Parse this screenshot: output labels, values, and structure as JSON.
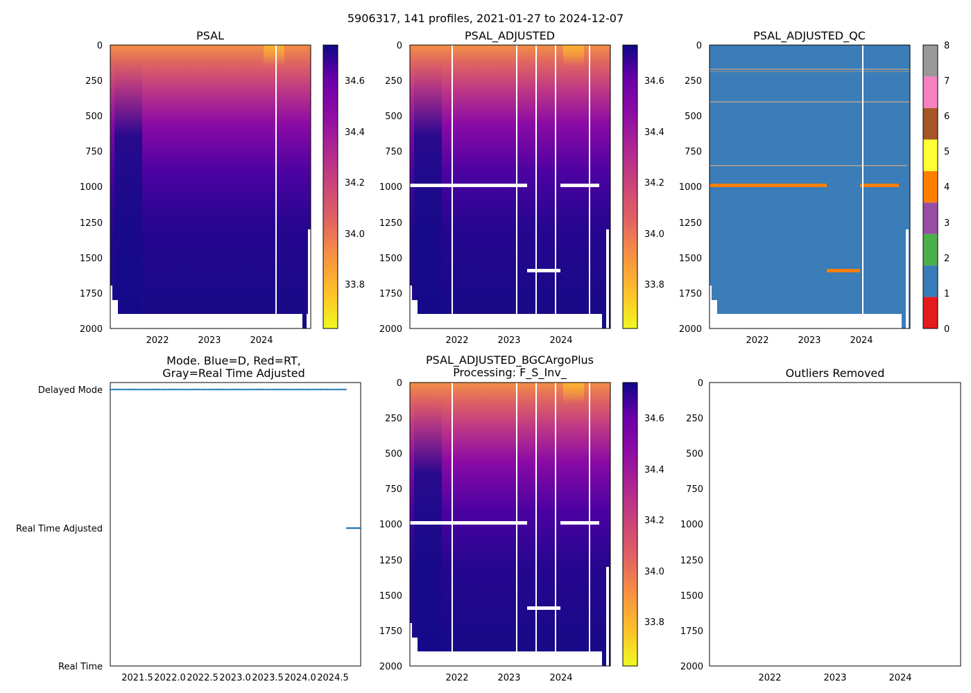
{
  "figure": {
    "suptitle": "5906317, 141 profiles, 2021-01-27 to 2024-12-07"
  },
  "colors": {
    "qc_palette": [
      "#e41a1c",
      "#377eb8",
      "#4daf4a",
      "#984ea3",
      "#ff7f00",
      "#ffff33",
      "#a65628",
      "#f781bf",
      "#999999"
    ],
    "mode_marker": "#1f77b4",
    "qc_good": "#3a7db8",
    "qc_bad": "#ff7f00",
    "qc_flag8": "#999999"
  },
  "chart_data": [
    {
      "id": "psal",
      "type": "heatmap",
      "title": "PSAL",
      "x_range": [
        2021.07,
        2024.93
      ],
      "y_range": [
        0,
        2000
      ],
      "y_inverted": true,
      "xticks": [
        "2022",
        "2023",
        "2024"
      ],
      "xtick_values": [
        2022,
        2023,
        2024
      ],
      "yticks": [
        "0",
        "250",
        "500",
        "750",
        "1000",
        "1250",
        "1500",
        "1750",
        "2000"
      ],
      "ytick_values": [
        0,
        250,
        500,
        750,
        1000,
        1250,
        1500,
        1750,
        2000
      ],
      "colormap": "plasma_r",
      "clim": [
        33.65,
        34.75
      ],
      "colorbar_ticks": [
        "33.8",
        "34.0",
        "34.2",
        "34.4",
        "34.6"
      ],
      "colorbar_tick_values": [
        33.8,
        34.0,
        34.2,
        34.4,
        34.6
      ],
      "gaps_x": [
        2024.27
      ],
      "has_adjusted_gaps": false
    },
    {
      "id": "psal_adj",
      "type": "heatmap",
      "title": "PSAL_ADJUSTED",
      "x_range": [
        2021.07,
        2024.93
      ],
      "y_range": [
        0,
        2000
      ],
      "y_inverted": true,
      "xticks": [
        "2022",
        "2023",
        "2024"
      ],
      "xtick_values": [
        2022,
        2023,
        2024
      ],
      "yticks": [
        "0",
        "250",
        "500",
        "750",
        "1000",
        "1250",
        "1500",
        "1750",
        "2000"
      ],
      "ytick_values": [
        0,
        250,
        500,
        750,
        1000,
        1250,
        1500,
        1750,
        2000
      ],
      "colormap": "plasma_r",
      "clim": [
        33.65,
        34.75
      ],
      "colorbar_ticks": [
        "33.8",
        "34.0",
        "34.2",
        "34.4",
        "34.6"
      ],
      "colorbar_tick_values": [
        33.8,
        34.0,
        34.2,
        34.4,
        34.6
      ],
      "gaps_x": [
        2021.88,
        2023.12,
        2023.5,
        2023.88,
        2024.52
      ],
      "missing_bands": [
        {
          "x0": 2021.07,
          "x1": 2023.32,
          "depth": 985
        },
        {
          "x0": 2023.97,
          "x1": 2024.7,
          "depth": 985
        },
        {
          "x0": 2023.33,
          "x1": 2023.97,
          "depth": 1585
        }
      ]
    },
    {
      "id": "psal_adj_qc",
      "type": "heatmap",
      "title": "PSAL_ADJUSTED_QC",
      "x_range": [
        2021.07,
        2024.93
      ],
      "y_range": [
        0,
        2000
      ],
      "y_inverted": true,
      "xticks": [
        "2022",
        "2023",
        "2024"
      ],
      "xtick_values": [
        2022,
        2023,
        2024
      ],
      "yticks": [
        "0",
        "250",
        "500",
        "750",
        "1000",
        "1250",
        "1500",
        "1750",
        "2000"
      ],
      "ytick_values": [
        0,
        250,
        500,
        750,
        1000,
        1250,
        1500,
        1750,
        2000
      ],
      "qc_levels": [
        0,
        1,
        2,
        3,
        4,
        5,
        6,
        7,
        8
      ],
      "colorbar_ticks": [
        "0",
        "1",
        "2",
        "3",
        "4",
        "5",
        "6",
        "7",
        "8"
      ],
      "dominant_flag": 1,
      "flag4_segments": [
        {
          "x0": 2021.07,
          "x1": 2023.32,
          "depth": 985
        },
        {
          "x0": 2023.97,
          "x1": 2024.7,
          "depth": 985
        },
        {
          "x0": 2023.33,
          "x1": 2023.97,
          "depth": 1585
        }
      ],
      "flag8_depths": [
        170,
        185,
        200,
        400,
        850
      ],
      "gaps_x": [
        2024.0
      ]
    },
    {
      "id": "mode",
      "type": "scatter",
      "title_lines": [
        "Mode. Blue=D, Red=RT,",
        "Gray=Real Time Adjusted"
      ],
      "x_range": [
        2021.07,
        2024.93
      ],
      "xticks": [
        "2021.5",
        "2022.0",
        "2022.5",
        "2023.0",
        "2023.5",
        "2024.0",
        "2024.5"
      ],
      "xtick_values": [
        2021.5,
        2022.0,
        2022.5,
        2023.0,
        2023.5,
        2024.0,
        2024.5
      ],
      "ycategories": [
        "Delayed Mode",
        "Real Time Adjusted",
        "Real Time"
      ],
      "series": [
        {
          "name": "Delayed Mode",
          "x_start": 2021.07,
          "x_end": 2024.7,
          "count": 130,
          "level": 0
        },
        {
          "name": "Real Time Adjusted",
          "x_start": 2024.72,
          "x_end": 2024.93,
          "count": 11,
          "level": 1
        }
      ]
    },
    {
      "id": "psal_bgc",
      "type": "heatmap",
      "title_lines": [
        "PSAL_ADJUSTED_BGCArgoPlus",
        "Processing: F_S_Inv_"
      ],
      "x_range": [
        2021.07,
        2024.93
      ],
      "y_range": [
        0,
        2000
      ],
      "y_inverted": true,
      "xticks": [
        "2022",
        "2023",
        "2024"
      ],
      "xtick_values": [
        2022,
        2023,
        2024
      ],
      "yticks": [
        "0",
        "250",
        "500",
        "750",
        "1000",
        "1250",
        "1500",
        "1750",
        "2000"
      ],
      "ytick_values": [
        0,
        250,
        500,
        750,
        1000,
        1250,
        1500,
        1750,
        2000
      ],
      "colormap": "plasma_r",
      "clim": [
        33.65,
        34.75
      ],
      "colorbar_ticks": [
        "33.8",
        "34.0",
        "34.2",
        "34.4",
        "34.6"
      ],
      "colorbar_tick_values": [
        33.8,
        34.0,
        34.2,
        34.4,
        34.6
      ],
      "gaps_x": [
        2021.88,
        2023.12,
        2023.5,
        2023.88,
        2024.52
      ],
      "missing_bands": [
        {
          "x0": 2021.07,
          "x1": 2023.32,
          "depth": 985
        },
        {
          "x0": 2023.97,
          "x1": 2024.7,
          "depth": 985
        },
        {
          "x0": 2023.33,
          "x1": 2023.97,
          "depth": 1585
        }
      ]
    },
    {
      "id": "outliers",
      "type": "scatter",
      "title": "Outliers Removed",
      "x_range": [
        2021.07,
        2024.93
      ],
      "y_range": [
        0,
        2000
      ],
      "y_inverted": true,
      "xticks": [
        "2022",
        "2023",
        "2024"
      ],
      "xtick_values": [
        2022,
        2023,
        2024
      ],
      "yticks": [
        "0",
        "250",
        "500",
        "750",
        "1000",
        "1250",
        "1500",
        "1750",
        "2000"
      ],
      "ytick_values": [
        0,
        250,
        500,
        750,
        1000,
        1250,
        1500,
        1750,
        2000
      ],
      "points": []
    }
  ]
}
